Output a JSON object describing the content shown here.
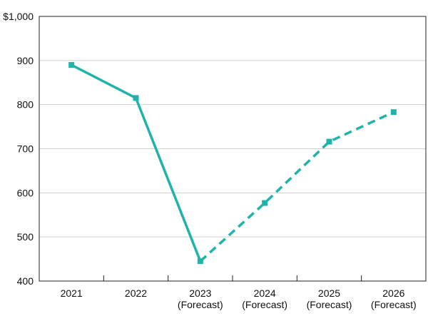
{
  "chart_data": {
    "type": "line",
    "title": "",
    "xlabel": "",
    "ylabel": "",
    "categories": [
      [
        "2021"
      ],
      [
        "2022"
      ],
      [
        "2023",
        "(Forecast)"
      ],
      [
        "2024",
        "(Forecast)"
      ],
      [
        "2025",
        "(Forecast)"
      ],
      [
        "2026",
        "(Forecast)"
      ]
    ],
    "values": [
      890,
      815,
      445,
      577,
      716,
      783
    ],
    "actual_range": [
      0,
      2
    ],
    "forecast_range": [
      2,
      5
    ],
    "ylim": [
      400,
      1000
    ],
    "yticks": [
      400,
      500,
      600,
      700,
      800,
      900,
      1000
    ],
    "ytick_labels": [
      "400",
      "500",
      "600",
      "700",
      "800",
      "900",
      "$1,000"
    ],
    "grid": true,
    "legend": "none",
    "colors": {
      "line": "#1fb3aa",
      "grid": "#cfcfcf",
      "axis": "#222222"
    }
  }
}
